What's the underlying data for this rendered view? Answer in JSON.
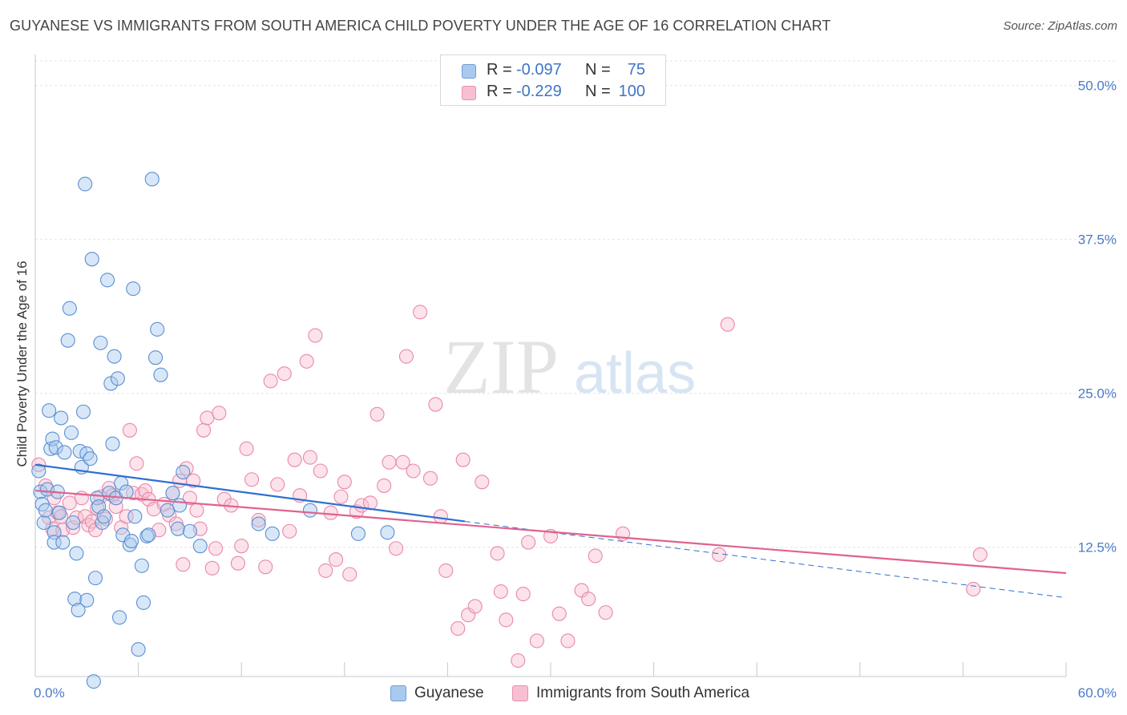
{
  "title": "GUYANESE VS IMMIGRANTS FROM SOUTH AMERICA CHILD POVERTY UNDER THE AGE OF 16 CORRELATION CHART",
  "source": "Source: ZipAtlas.com",
  "watermark": {
    "zip": "ZIP",
    "atlas": "atlas"
  },
  "legend": {
    "rows": [
      {
        "r_label": "R =",
        "r_value": "-0.097",
        "n_label": "N =",
        "n_value": "75",
        "color": "#a9c9ee",
        "edge": "#6f9fd8"
      },
      {
        "r_label": "R =",
        "r_value": "-0.229",
        "n_label": "N =",
        "n_value": "100",
        "color": "#f8bfd1",
        "edge": "#ea8fb0"
      }
    ]
  },
  "bottom_legend": {
    "items": [
      {
        "label": "Guyanese",
        "color": "#a9c9ee",
        "edge": "#6f9fd8"
      },
      {
        "label": "Immigrants from South America",
        "color": "#f8bfd1",
        "edge": "#ea8fb0"
      }
    ]
  },
  "chart_data": {
    "type": "scatter",
    "ylabel": "Child Poverty Under the Age of 16",
    "xlim": [
      0,
      60
    ],
    "ylim": [
      2,
      52
    ],
    "x_tick_labels": {
      "left": "0.0%",
      "right": "60.0%"
    },
    "y_ticks": [
      {
        "value": 12.5,
        "label": "12.5%"
      },
      {
        "value": 25.0,
        "label": "25.0%"
      },
      {
        "value": 37.5,
        "label": "37.5%"
      },
      {
        "value": 50.0,
        "label": "50.0%"
      }
    ],
    "grid": true,
    "series": [
      {
        "name": "Guyanese",
        "color": "#a9c9ee",
        "edge": "#5b8fd3",
        "line_color": "#2f6fcf",
        "trend": {
          "x0": 0,
          "y0": 19.2,
          "x1": 25,
          "y1": 14.6,
          "dash_to_x": 60,
          "dash_to_y": 8.4
        },
        "points": [
          [
            0.2,
            18.7
          ],
          [
            0.3,
            17.0
          ],
          [
            0.4,
            16.0
          ],
          [
            0.5,
            14.5
          ],
          [
            0.6,
            15.5
          ],
          [
            0.7,
            17.2
          ],
          [
            0.8,
            23.6
          ],
          [
            0.9,
            20.5
          ],
          [
            1.0,
            21.3
          ],
          [
            1.1,
            13.7
          ],
          [
            1.1,
            12.9
          ],
          [
            1.2,
            20.6
          ],
          [
            1.3,
            17.0
          ],
          [
            1.4,
            15.3
          ],
          [
            1.5,
            23.0
          ],
          [
            1.6,
            12.9
          ],
          [
            1.7,
            20.2
          ],
          [
            1.9,
            29.3
          ],
          [
            2.0,
            31.9
          ],
          [
            2.1,
            21.8
          ],
          [
            2.2,
            14.5
          ],
          [
            2.3,
            8.3
          ],
          [
            2.4,
            12.0
          ],
          [
            2.5,
            7.4
          ],
          [
            2.6,
            20.3
          ],
          [
            2.7,
            19.0
          ],
          [
            2.8,
            23.5
          ],
          [
            2.9,
            42.0
          ],
          [
            3.0,
            8.2
          ],
          [
            3.0,
            20.1
          ],
          [
            3.2,
            19.7
          ],
          [
            3.3,
            35.9
          ],
          [
            3.4,
            1.6
          ],
          [
            3.5,
            10.0
          ],
          [
            3.6,
            16.5
          ],
          [
            3.7,
            15.8
          ],
          [
            3.8,
            29.1
          ],
          [
            3.9,
            14.5
          ],
          [
            4.0,
            15.0
          ],
          [
            4.2,
            34.2
          ],
          [
            4.3,
            16.9
          ],
          [
            4.4,
            25.8
          ],
          [
            4.5,
            20.9
          ],
          [
            4.6,
            28.0
          ],
          [
            4.7,
            16.5
          ],
          [
            4.8,
            26.2
          ],
          [
            4.9,
            6.8
          ],
          [
            5.0,
            17.7
          ],
          [
            5.1,
            13.5
          ],
          [
            5.3,
            17.0
          ],
          [
            5.5,
            12.7
          ],
          [
            5.6,
            13.0
          ],
          [
            5.7,
            33.5
          ],
          [
            5.8,
            15.0
          ],
          [
            6.0,
            4.2
          ],
          [
            6.2,
            11.0
          ],
          [
            6.3,
            8.0
          ],
          [
            6.5,
            13.4
          ],
          [
            6.6,
            13.5
          ],
          [
            6.8,
            42.4
          ],
          [
            7.0,
            27.9
          ],
          [
            7.1,
            30.2
          ],
          [
            7.3,
            26.5
          ],
          [
            7.7,
            15.5
          ],
          [
            8.0,
            16.9
          ],
          [
            8.3,
            14.0
          ],
          [
            8.4,
            15.9
          ],
          [
            8.6,
            18.6
          ],
          [
            9.0,
            13.8
          ],
          [
            9.6,
            12.6
          ],
          [
            13.0,
            14.4
          ],
          [
            13.8,
            13.6
          ],
          [
            16.0,
            15.5
          ],
          [
            18.8,
            13.6
          ],
          [
            20.5,
            13.7
          ]
        ]
      },
      {
        "name": "Immigrants from South America",
        "color": "#f8bfd1",
        "edge": "#e889aa",
        "line_color": "#e0628e",
        "trend": {
          "x0": 0,
          "y0": 17.1,
          "x1": 60,
          "y1": 10.4
        },
        "points": [
          [
            0.2,
            19.2
          ],
          [
            0.6,
            17.5
          ],
          [
            0.8,
            14.9
          ],
          [
            1.0,
            14.0
          ],
          [
            1.1,
            16.5
          ],
          [
            1.3,
            15.3
          ],
          [
            1.5,
            15.0
          ],
          [
            1.6,
            13.9
          ],
          [
            2.0,
            16.1
          ],
          [
            2.2,
            14.1
          ],
          [
            2.4,
            14.9
          ],
          [
            2.7,
            16.5
          ],
          [
            2.9,
            15.0
          ],
          [
            3.1,
            14.3
          ],
          [
            3.3,
            14.6
          ],
          [
            3.5,
            13.9
          ],
          [
            3.6,
            15.7
          ],
          [
            3.8,
            16.6
          ],
          [
            4.1,
            14.8
          ],
          [
            4.3,
            17.3
          ],
          [
            4.5,
            16.7
          ],
          [
            4.7,
            15.8
          ],
          [
            5.0,
            14.1
          ],
          [
            5.3,
            15.0
          ],
          [
            5.5,
            22.0
          ],
          [
            5.7,
            16.9
          ],
          [
            5.9,
            19.3
          ],
          [
            6.2,
            16.8
          ],
          [
            6.4,
            17.1
          ],
          [
            6.6,
            16.4
          ],
          [
            6.9,
            15.6
          ],
          [
            7.2,
            13.9
          ],
          [
            7.5,
            16.0
          ],
          [
            7.8,
            15.1
          ],
          [
            8.0,
            16.9
          ],
          [
            8.2,
            14.4
          ],
          [
            8.4,
            17.9
          ],
          [
            8.6,
            11.1
          ],
          [
            8.8,
            18.9
          ],
          [
            9.0,
            16.5
          ],
          [
            9.2,
            17.9
          ],
          [
            9.4,
            15.5
          ],
          [
            9.6,
            14.0
          ],
          [
            9.8,
            22.0
          ],
          [
            10.0,
            23.0
          ],
          [
            10.3,
            10.8
          ],
          [
            10.5,
            12.4
          ],
          [
            10.7,
            23.4
          ],
          [
            11.0,
            16.4
          ],
          [
            11.4,
            15.9
          ],
          [
            11.8,
            11.2
          ],
          [
            12.0,
            12.6
          ],
          [
            12.3,
            20.5
          ],
          [
            12.6,
            18.0
          ],
          [
            13.0,
            14.7
          ],
          [
            13.4,
            10.9
          ],
          [
            13.7,
            26.0
          ],
          [
            14.1,
            17.6
          ],
          [
            14.5,
            26.6
          ],
          [
            14.8,
            13.8
          ],
          [
            15.1,
            19.6
          ],
          [
            15.4,
            16.7
          ],
          [
            15.8,
            27.6
          ],
          [
            16.0,
            19.8
          ],
          [
            16.3,
            29.7
          ],
          [
            16.6,
            18.7
          ],
          [
            16.9,
            10.6
          ],
          [
            17.2,
            15.3
          ],
          [
            17.5,
            11.5
          ],
          [
            17.8,
            16.6
          ],
          [
            18.0,
            17.8
          ],
          [
            18.3,
            10.3
          ],
          [
            18.7,
            15.4
          ],
          [
            19.0,
            15.9
          ],
          [
            19.5,
            16.1
          ],
          [
            19.9,
            23.3
          ],
          [
            20.3,
            17.5
          ],
          [
            20.6,
            19.4
          ],
          [
            21.0,
            12.4
          ],
          [
            21.4,
            19.4
          ],
          [
            21.6,
            28.0
          ],
          [
            22.0,
            18.7
          ],
          [
            22.4,
            31.6
          ],
          [
            23.0,
            18.1
          ],
          [
            23.3,
            24.1
          ],
          [
            23.6,
            15.0
          ],
          [
            23.9,
            10.6
          ],
          [
            24.6,
            5.9
          ],
          [
            24.9,
            19.6
          ],
          [
            25.2,
            7.0
          ],
          [
            25.6,
            7.7
          ],
          [
            26.0,
            17.8
          ],
          [
            26.9,
            12.0
          ],
          [
            27.1,
            8.9
          ],
          [
            27.4,
            6.6
          ],
          [
            28.1,
            3.3
          ],
          [
            28.4,
            8.7
          ],
          [
            28.7,
            12.9
          ],
          [
            29.2,
            4.9
          ],
          [
            39.8,
            11.9
          ]
        ],
        "extra_points": [
          [
            30.0,
            13.4
          ],
          [
            30.5,
            7.1
          ],
          [
            31.0,
            4.9
          ],
          [
            31.8,
            9.0
          ],
          [
            32.2,
            8.3
          ],
          [
            32.6,
            11.8
          ],
          [
            33.2,
            7.2
          ],
          [
            34.2,
            13.6
          ],
          [
            40.3,
            30.6
          ],
          [
            54.6,
            9.1
          ],
          [
            55.0,
            11.9
          ]
        ]
      }
    ]
  }
}
